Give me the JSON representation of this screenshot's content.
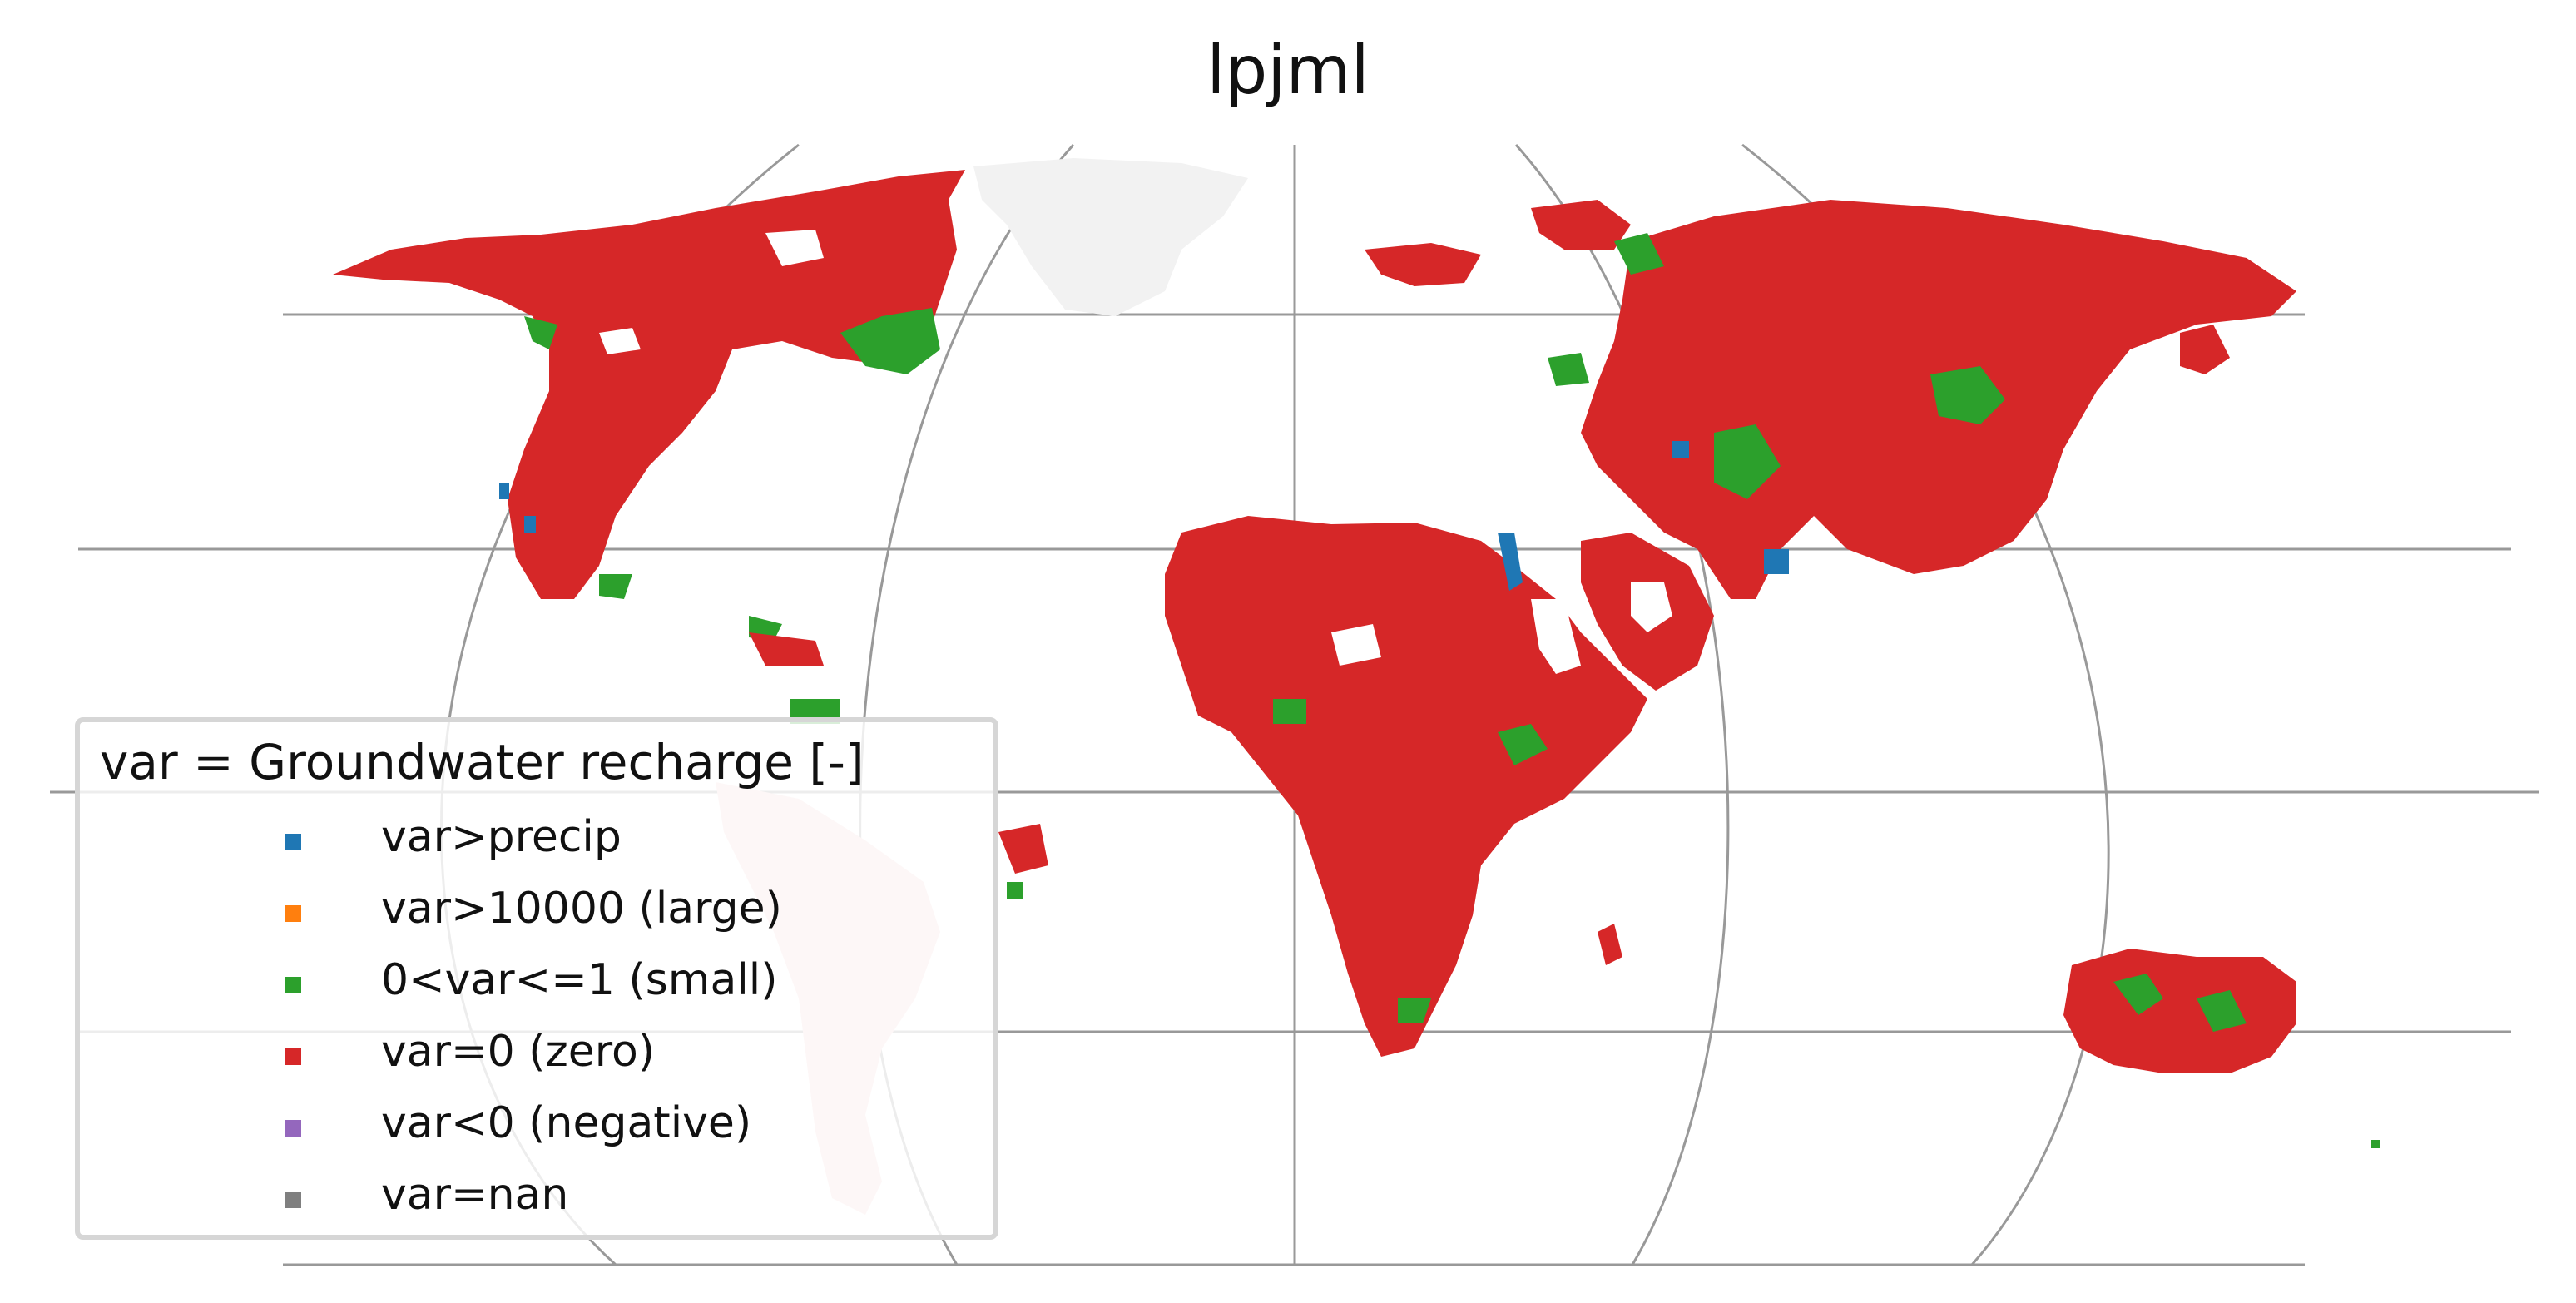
{
  "title": "lpjml",
  "legend": {
    "title": "var = Groundwater recharge [-]",
    "items": [
      {
        "label": "var>precip",
        "color": "#1f77b4"
      },
      {
        "label": "var>10000 (large)",
        "color": "#ff7f0e"
      },
      {
        "label": "0<var<=1 (small)",
        "color": "#2ca02c"
      },
      {
        "label": "var=0 (zero)",
        "color": "#d62728"
      },
      {
        "label": "var<0 (negative)",
        "color": "#9467bd"
      },
      {
        "label": "var=nan",
        "color": "#7f7f7f"
      }
    ]
  },
  "colors": {
    "zero": "#d62728",
    "small": "#2ca02c",
    "precip": "#1f77b4",
    "gridline": "#999999",
    "ice": "#f2f2f2"
  }
}
